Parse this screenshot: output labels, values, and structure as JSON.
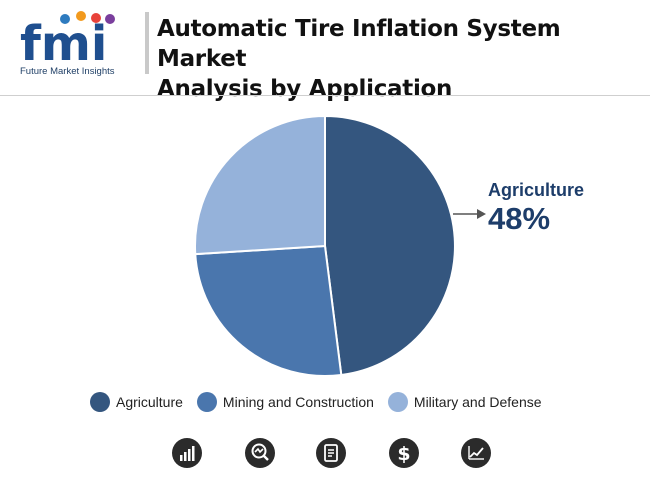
{
  "header": {
    "logo_text": "fmi",
    "logo_name": "Future Market Insights",
    "title_line1": "Automatic Tire Inflation System Market",
    "title_line2": "Analysis by Application"
  },
  "colors": {
    "agriculture": "#34567f",
    "mining": "#4a76ad",
    "military": "#95b2da",
    "brand_blue": "#1d3d6a"
  },
  "chart_data": {
    "type": "pie",
    "title": "Automatic Tire Inflation System Market Analysis by Application",
    "categories": [
      "Agriculture",
      "Mining and Construction",
      "Military and Defense"
    ],
    "values": [
      48,
      26,
      26
    ],
    "unit": "%",
    "legend_position": "bottom",
    "callout": {
      "label": "Agriculture",
      "value": "48%"
    }
  },
  "footer_icons": [
    "bar-chart-icon",
    "magnifier-chart-icon",
    "report-icon",
    "dollar-icon",
    "line-chart-icon"
  ]
}
